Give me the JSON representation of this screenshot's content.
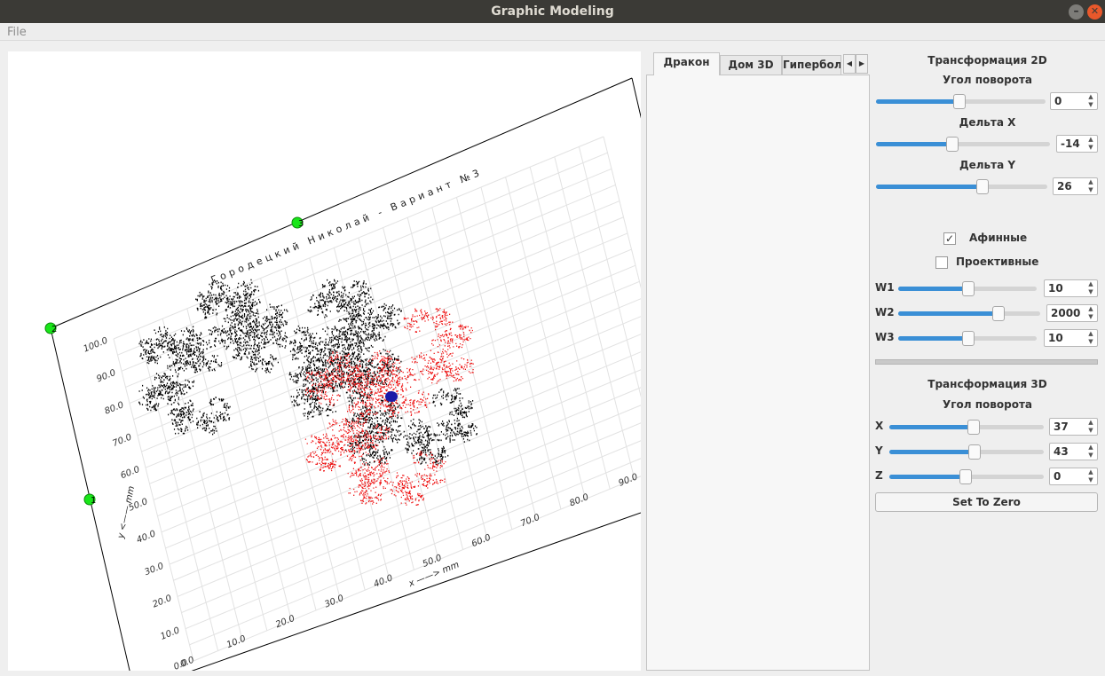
{
  "window": {
    "title": "Graphic Modeling",
    "menu": [
      "File"
    ]
  },
  "plot": {
    "title": "Городецкий Николай - Вариант №3",
    "x_label": "x ——> mm",
    "y_label": "y <—— mm",
    "x_ticks": [
      "0.0",
      "10.0",
      "20.0",
      "30.0",
      "40.0",
      "50.0",
      "60.0",
      "70.0",
      "80.0",
      "90.0"
    ],
    "y_ticks": [
      "0.0",
      "10.0",
      "20.0",
      "30.0",
      "40.0",
      "50.0",
      "60.0",
      "70.0",
      "80.0",
      "90.0",
      "100.0"
    ],
    "control_points": [
      "1",
      "2",
      "3"
    ]
  },
  "tabs": [
    "Дракон",
    "Дом 3D",
    "Гипербол"
  ],
  "transform_2d": {
    "title": "Трансформация 2D",
    "sliders": [
      {
        "label": "Угол поворота",
        "value": 0
      },
      {
        "label": "Дельта X",
        "value": -14
      },
      {
        "label": "Дельта  Y",
        "value": 26
      }
    ]
  },
  "mode": [
    {
      "label": "Афинные",
      "checked": true
    },
    {
      "label": "Проективные",
      "checked": false
    }
  ],
  "weights": [
    {
      "label": "W1",
      "value": 10
    },
    {
      "label": "W2",
      "value": 2000
    },
    {
      "label": "W3",
      "value": 10
    }
  ],
  "transform_3d": {
    "title": "Трансформация 3D",
    "subtitle": "Угол поворота",
    "axes": [
      {
        "label": "X",
        "value": 37
      },
      {
        "label": "Y",
        "value": 43
      },
      {
        "label": "Z",
        "value": 0
      }
    ]
  },
  "reset_button": "Set To Zero"
}
